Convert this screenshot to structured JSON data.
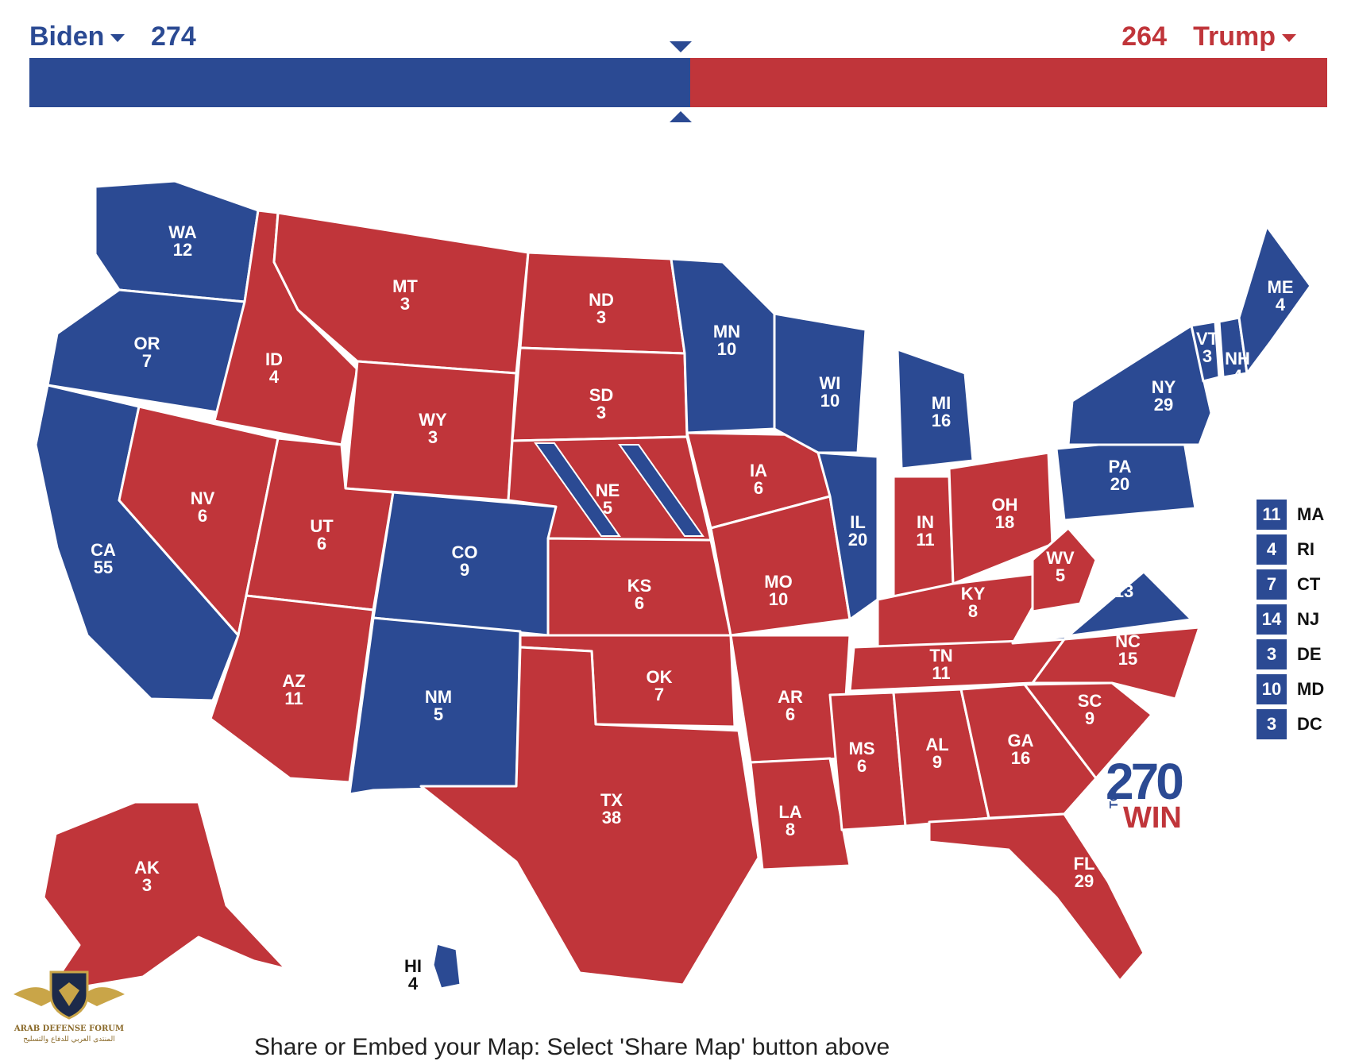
{
  "header": {
    "left_candidate": "Biden",
    "left_total": "274",
    "right_total": "264",
    "right_candidate": "Trump",
    "dem_share": 0.5093,
    "threshold_share": 0.5019
  },
  "colors": {
    "dem": "#2b4a93",
    "rep": "#c0353a",
    "border": "#ffffff"
  },
  "states": [
    {
      "abbr": "WA",
      "ev": "12",
      "party": "dem"
    },
    {
      "abbr": "OR",
      "ev": "7",
      "party": "dem"
    },
    {
      "abbr": "CA",
      "ev": "55",
      "party": "dem"
    },
    {
      "abbr": "ID",
      "ev": "4",
      "party": "rep"
    },
    {
      "abbr": "NV",
      "ev": "6",
      "party": "rep"
    },
    {
      "abbr": "MT",
      "ev": "3",
      "party": "rep"
    },
    {
      "abbr": "WY",
      "ev": "3",
      "party": "rep"
    },
    {
      "abbr": "UT",
      "ev": "6",
      "party": "rep"
    },
    {
      "abbr": "AZ",
      "ev": "11",
      "party": "rep"
    },
    {
      "abbr": "CO",
      "ev": "9",
      "party": "dem"
    },
    {
      "abbr": "NM",
      "ev": "5",
      "party": "dem"
    },
    {
      "abbr": "ND",
      "ev": "3",
      "party": "rep"
    },
    {
      "abbr": "SD",
      "ev": "3",
      "party": "rep"
    },
    {
      "abbr": "NE",
      "ev": "5",
      "party": "rep"
    },
    {
      "abbr": "KS",
      "ev": "6",
      "party": "rep"
    },
    {
      "abbr": "OK",
      "ev": "7",
      "party": "rep"
    },
    {
      "abbr": "TX",
      "ev": "38",
      "party": "rep"
    },
    {
      "abbr": "MN",
      "ev": "10",
      "party": "dem"
    },
    {
      "abbr": "IA",
      "ev": "6",
      "party": "rep"
    },
    {
      "abbr": "MO",
      "ev": "10",
      "party": "rep"
    },
    {
      "abbr": "AR",
      "ev": "6",
      "party": "rep"
    },
    {
      "abbr": "LA",
      "ev": "8",
      "party": "rep"
    },
    {
      "abbr": "WI",
      "ev": "10",
      "party": "dem"
    },
    {
      "abbr": "IL",
      "ev": "20",
      "party": "dem"
    },
    {
      "abbr": "MI",
      "ev": "16",
      "party": "dem"
    },
    {
      "abbr": "IN",
      "ev": "11",
      "party": "rep"
    },
    {
      "abbr": "OH",
      "ev": "18",
      "party": "rep"
    },
    {
      "abbr": "KY",
      "ev": "8",
      "party": "rep"
    },
    {
      "abbr": "TN",
      "ev": "11",
      "party": "rep"
    },
    {
      "abbr": "MS",
      "ev": "6",
      "party": "rep"
    },
    {
      "abbr": "AL",
      "ev": "9",
      "party": "rep"
    },
    {
      "abbr": "GA",
      "ev": "16",
      "party": "rep"
    },
    {
      "abbr": "FL",
      "ev": "29",
      "party": "rep"
    },
    {
      "abbr": "SC",
      "ev": "9",
      "party": "rep"
    },
    {
      "abbr": "NC",
      "ev": "15",
      "party": "rep"
    },
    {
      "abbr": "VA",
      "ev": "13",
      "party": "dem"
    },
    {
      "abbr": "WV",
      "ev": "5",
      "party": "rep"
    },
    {
      "abbr": "PA",
      "ev": "20",
      "party": "dem"
    },
    {
      "abbr": "NY",
      "ev": "29",
      "party": "dem"
    },
    {
      "abbr": "VT",
      "ev": "3",
      "party": "dem"
    },
    {
      "abbr": "NH",
      "ev": "4",
      "party": "dem"
    },
    {
      "abbr": "ME",
      "ev": "4",
      "party": "dem"
    },
    {
      "abbr": "AK",
      "ev": "3",
      "party": "rep"
    },
    {
      "abbr": "HI",
      "ev": "4",
      "party": "dem"
    }
  ],
  "small_states": [
    {
      "ev": "11",
      "abbr": "MA"
    },
    {
      "ev": "4",
      "abbr": "RI"
    },
    {
      "ev": "7",
      "abbr": "CT"
    },
    {
      "ev": "14",
      "abbr": "NJ"
    },
    {
      "ev": "3",
      "abbr": "DE"
    },
    {
      "ev": "10",
      "abbr": "MD"
    },
    {
      "ev": "3",
      "abbr": "DC"
    }
  ],
  "logo": {
    "number": "270",
    "to": "TO",
    "win": "WIN"
  },
  "watermark": {
    "en": "ARAB DEFENSE FORUM",
    "ar": "المنتدى العربي للدفاع والتسليح"
  },
  "footer": "Share or Embed your Map: Select 'Share Map' button above"
}
